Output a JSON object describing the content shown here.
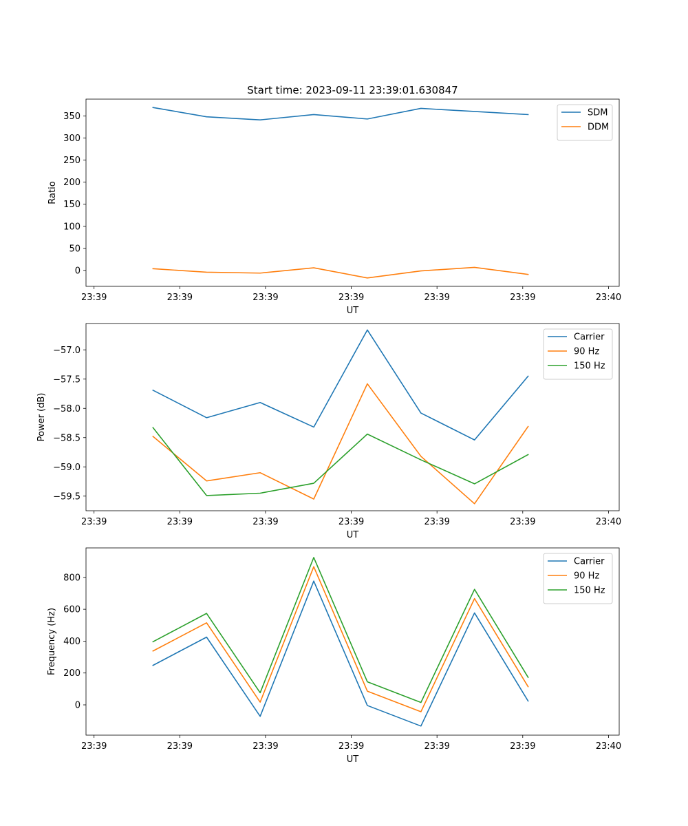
{
  "figure": {
    "suptitle": "Start time: 2023-09-11 23:39:01.630847"
  },
  "chart_data": [
    {
      "type": "line",
      "title": "Start time: 2023-09-11 23:39:01.630847",
      "xlabel": "UT",
      "ylabel": "Ratio",
      "x": [
        0.5,
        1.5,
        2.5,
        3.5,
        4.5,
        5.5,
        6.5,
        7.5
      ],
      "xlim": [
        -0.75,
        9.2
      ],
      "xticks": [
        {
          "value": -0.6,
          "label": "23:39"
        },
        {
          "value": 1.0,
          "label": "23:39"
        },
        {
          "value": 2.6,
          "label": "23:39"
        },
        {
          "value": 4.2,
          "label": "23:39"
        },
        {
          "value": 5.8,
          "label": "23:39"
        },
        {
          "value": 7.4,
          "label": "23:39"
        },
        {
          "value": 9.0,
          "label": "23:40"
        }
      ],
      "ylim": [
        -36,
        388
      ],
      "yticks": [
        0,
        50,
        100,
        150,
        200,
        250,
        300,
        350
      ],
      "series": [
        {
          "name": "SDM",
          "color": "#1f77b4",
          "values": [
            369,
            348,
            341,
            353,
            343,
            367,
            360,
            353
          ]
        },
        {
          "name": "DDM",
          "color": "#ff7f0e",
          "values": [
            4,
            -4,
            -6,
            6,
            -17,
            -1,
            7,
            -9
          ]
        }
      ],
      "legend": "top-right"
    },
    {
      "type": "line",
      "title": "",
      "xlabel": "UT",
      "ylabel": "Power (dB)",
      "x": [
        0.5,
        1.5,
        2.5,
        3.5,
        4.5,
        5.5,
        6.5,
        7.5
      ],
      "xlim": [
        -0.75,
        9.2
      ],
      "xticks": [
        {
          "value": -0.6,
          "label": "23:39"
        },
        {
          "value": 1.0,
          "label": "23:39"
        },
        {
          "value": 2.6,
          "label": "23:39"
        },
        {
          "value": 4.2,
          "label": "23:39"
        },
        {
          "value": 5.8,
          "label": "23:39"
        },
        {
          "value": 7.4,
          "label": "23:39"
        },
        {
          "value": 9.0,
          "label": "23:40"
        }
      ],
      "ylim": [
        -59.75,
        -56.55
      ],
      "yticks": [
        -59.5,
        -59.0,
        -58.5,
        -58.0,
        -57.5,
        -57.0
      ],
      "ytick_labels": [
        "−59.5",
        "−59.0",
        "−58.5",
        "−58.0",
        "−57.5",
        "−57.0"
      ],
      "series": [
        {
          "name": "Carrier",
          "color": "#1f77b4",
          "values": [
            -57.69,
            -58.16,
            -57.9,
            -58.32,
            -56.66,
            -58.08,
            -58.54,
            -57.45
          ]
        },
        {
          "name": "90 Hz",
          "color": "#ff7f0e",
          "values": [
            -58.48,
            -59.24,
            -59.1,
            -59.55,
            -57.58,
            -58.82,
            -59.63,
            -58.31
          ]
        },
        {
          "name": "150 Hz",
          "color": "#2ca02c",
          "values": [
            -58.33,
            -59.49,
            -59.45,
            -59.28,
            -58.44,
            -58.88,
            -59.29,
            -58.79
          ]
        }
      ],
      "legend": "top-right"
    },
    {
      "type": "line",
      "title": "",
      "xlabel": "UT",
      "ylabel": "Frequency (Hz)",
      "x": [
        0.5,
        1.5,
        2.5,
        3.5,
        4.5,
        5.5,
        6.5,
        7.5
      ],
      "xlim": [
        -0.75,
        9.2
      ],
      "xticks": [
        {
          "value": -0.6,
          "label": "23:39"
        },
        {
          "value": 1.0,
          "label": "23:39"
        },
        {
          "value": 2.6,
          "label": "23:39"
        },
        {
          "value": 4.2,
          "label": "23:39"
        },
        {
          "value": 5.8,
          "label": "23:39"
        },
        {
          "value": 7.4,
          "label": "23:39"
        },
        {
          "value": 9.0,
          "label": "23:40"
        }
      ],
      "ylim": [
        -190,
        985
      ],
      "yticks": [
        0,
        200,
        400,
        600,
        800
      ],
      "series": [
        {
          "name": "Carrier",
          "color": "#1f77b4",
          "values": [
            248,
            425,
            -72,
            777,
            -4,
            -133,
            577,
            24
          ]
        },
        {
          "name": "90 Hz",
          "color": "#ff7f0e",
          "values": [
            338,
            515,
            17,
            867,
            86,
            -43,
            667,
            114
          ]
        },
        {
          "name": "150 Hz",
          "color": "#2ca02c",
          "values": [
            396,
            574,
            76,
            925,
            145,
            15,
            725,
            173
          ]
        }
      ],
      "legend": "top-right"
    }
  ]
}
